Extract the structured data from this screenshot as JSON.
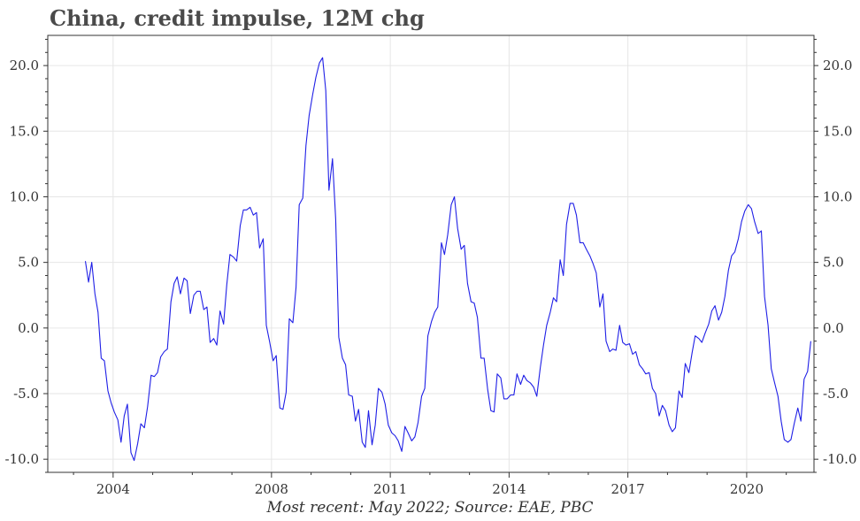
{
  "title": "China, credit impulse, 12M chg",
  "caption": "Most recent: May 2022; Source: EAE, PBC",
  "colors": {
    "line": "#1f1fe6",
    "grid": "#e6e6e6",
    "axis": "#333333"
  },
  "chart_data": {
    "type": "line",
    "title": "China, credit impulse, 12M chg",
    "xlabel": "",
    "ylabel": "",
    "xlim": [
      2002.35,
      2021.7
    ],
    "ylim": [
      -11.0,
      22.3
    ],
    "x_ticks": [
      2004,
      2008,
      2011,
      2014,
      2017,
      2020
    ],
    "x_tick_labels": [
      "2004",
      "2008",
      "2011",
      "2014",
      "2017",
      "2020"
    ],
    "y_ticks": [
      -10,
      -5,
      0,
      5,
      10,
      15,
      20
    ],
    "y_tick_labels": [
      "-10.0",
      "-5.0",
      "0.0",
      "5.0",
      "10.0",
      "15.0",
      "20.0"
    ],
    "grid": true,
    "secondary_y_axis": true,
    "series": [
      {
        "points": [
          [
            2003.3,
            5.1
          ],
          [
            2003.38,
            3.5
          ],
          [
            2003.46,
            5.0
          ],
          [
            2003.54,
            2.6
          ],
          [
            2003.62,
            1.2
          ],
          [
            2003.7,
            -2.3
          ],
          [
            2003.78,
            -2.5
          ],
          [
            2003.87,
            -4.8
          ],
          [
            2003.95,
            -5.7
          ],
          [
            2004.03,
            -6.4
          ],
          [
            2004.12,
            -7.0
          ],
          [
            2004.2,
            -8.7
          ],
          [
            2004.28,
            -6.7
          ],
          [
            2004.36,
            -5.8
          ],
          [
            2004.45,
            -9.5
          ],
          [
            2004.53,
            -10.1
          ],
          [
            2004.62,
            -8.8
          ],
          [
            2004.7,
            -7.3
          ],
          [
            2004.79,
            -7.6
          ],
          [
            2004.87,
            -6.0
          ],
          [
            2004.96,
            -3.6
          ],
          [
            2005.04,
            -3.7
          ],
          [
            2005.12,
            -3.4
          ],
          [
            2005.2,
            -2.2
          ],
          [
            2005.29,
            -1.8
          ],
          [
            2005.37,
            -1.6
          ],
          [
            2005.46,
            2.0
          ],
          [
            2005.54,
            3.4
          ],
          [
            2005.62,
            3.9
          ],
          [
            2005.7,
            2.6
          ],
          [
            2005.79,
            3.8
          ],
          [
            2005.87,
            3.6
          ],
          [
            2005.95,
            1.1
          ],
          [
            2006.04,
            2.5
          ],
          [
            2006.12,
            2.8
          ],
          [
            2006.2,
            2.8
          ],
          [
            2006.29,
            1.4
          ],
          [
            2006.37,
            1.6
          ],
          [
            2006.45,
            -1.1
          ],
          [
            2006.54,
            -0.8
          ],
          [
            2006.62,
            -1.3
          ],
          [
            2006.7,
            1.3
          ],
          [
            2006.79,
            0.3
          ],
          [
            2006.87,
            3.3
          ],
          [
            2006.95,
            5.6
          ],
          [
            2007.04,
            5.4
          ],
          [
            2007.12,
            5.1
          ],
          [
            2007.21,
            7.8
          ],
          [
            2007.29,
            9.0
          ],
          [
            2007.37,
            9.0
          ],
          [
            2007.46,
            9.2
          ],
          [
            2007.54,
            8.6
          ],
          [
            2007.62,
            8.8
          ],
          [
            2007.7,
            6.1
          ],
          [
            2007.79,
            6.8
          ],
          [
            2007.87,
            0.2
          ],
          [
            2007.95,
            -1.0
          ],
          [
            2008.04,
            -2.5
          ],
          [
            2008.12,
            -2.1
          ],
          [
            2008.21,
            -6.1
          ],
          [
            2008.29,
            -6.2
          ],
          [
            2008.37,
            -4.9
          ],
          [
            2008.45,
            0.7
          ],
          [
            2008.54,
            0.4
          ],
          [
            2008.62,
            3.1
          ],
          [
            2008.7,
            9.4
          ],
          [
            2008.79,
            9.9
          ],
          [
            2008.87,
            13.9
          ],
          [
            2008.95,
            16.2
          ],
          [
            2009.04,
            17.8
          ],
          [
            2009.12,
            19.1
          ],
          [
            2009.21,
            20.2
          ],
          [
            2009.29,
            20.6
          ],
          [
            2009.37,
            18.1
          ],
          [
            2009.45,
            10.5
          ],
          [
            2009.54,
            12.9
          ],
          [
            2009.62,
            8.3
          ],
          [
            2009.7,
            -0.7
          ],
          [
            2009.79,
            -2.3
          ],
          [
            2009.87,
            -2.8
          ],
          [
            2009.95,
            -5.1
          ],
          [
            2010.04,
            -5.2
          ],
          [
            2010.12,
            -7.1
          ],
          [
            2010.2,
            -6.2
          ],
          [
            2010.29,
            -8.7
          ],
          [
            2010.37,
            -9.1
          ],
          [
            2010.45,
            -6.3
          ],
          [
            2010.54,
            -8.9
          ],
          [
            2010.62,
            -7.4
          ],
          [
            2010.7,
            -4.6
          ],
          [
            2010.79,
            -4.9
          ],
          [
            2010.87,
            -5.8
          ],
          [
            2010.95,
            -7.4
          ],
          [
            2011.04,
            -8.0
          ],
          [
            2011.12,
            -8.2
          ],
          [
            2011.2,
            -8.6
          ],
          [
            2011.29,
            -9.4
          ],
          [
            2011.37,
            -7.5
          ],
          [
            2011.45,
            -8.0
          ],
          [
            2011.54,
            -8.6
          ],
          [
            2011.62,
            -8.3
          ],
          [
            2011.7,
            -7.2
          ],
          [
            2011.79,
            -5.2
          ],
          [
            2011.87,
            -4.6
          ],
          [
            2011.95,
            -0.6
          ],
          [
            2012.04,
            0.5
          ],
          [
            2012.12,
            1.2
          ],
          [
            2012.2,
            1.6
          ],
          [
            2012.29,
            6.5
          ],
          [
            2012.37,
            5.6
          ],
          [
            2012.45,
            7.1
          ],
          [
            2012.54,
            9.4
          ],
          [
            2012.62,
            10.0
          ],
          [
            2012.7,
            7.6
          ],
          [
            2012.79,
            6.0
          ],
          [
            2012.87,
            6.3
          ],
          [
            2012.95,
            3.4
          ],
          [
            2013.04,
            2.0
          ],
          [
            2013.12,
            1.9
          ],
          [
            2013.2,
            0.8
          ],
          [
            2013.29,
            -2.3
          ],
          [
            2013.37,
            -2.3
          ],
          [
            2013.46,
            -4.7
          ],
          [
            2013.54,
            -6.3
          ],
          [
            2013.62,
            -6.4
          ],
          [
            2013.7,
            -3.5
          ],
          [
            2013.79,
            -3.8
          ],
          [
            2013.87,
            -5.4
          ],
          [
            2013.95,
            -5.4
          ],
          [
            2014.04,
            -5.1
          ],
          [
            2014.12,
            -5.1
          ],
          [
            2014.2,
            -3.5
          ],
          [
            2014.29,
            -4.3
          ],
          [
            2014.37,
            -3.6
          ],
          [
            2014.45,
            -4.0
          ],
          [
            2014.54,
            -4.2
          ],
          [
            2014.62,
            -4.5
          ],
          [
            2014.7,
            -5.2
          ],
          [
            2014.79,
            -3.0
          ],
          [
            2014.87,
            -1.3
          ],
          [
            2014.95,
            0.2
          ],
          [
            2015.04,
            1.2
          ],
          [
            2015.12,
            2.3
          ],
          [
            2015.2,
            2.0
          ],
          [
            2015.29,
            5.2
          ],
          [
            2015.37,
            4.0
          ],
          [
            2015.45,
            7.9
          ],
          [
            2015.54,
            9.5
          ],
          [
            2015.62,
            9.5
          ],
          [
            2015.7,
            8.6
          ],
          [
            2015.79,
            6.5
          ],
          [
            2015.87,
            6.5
          ],
          [
            2015.95,
            6.0
          ],
          [
            2016.04,
            5.5
          ],
          [
            2016.12,
            4.9
          ],
          [
            2016.2,
            4.2
          ],
          [
            2016.29,
            1.6
          ],
          [
            2016.37,
            2.6
          ],
          [
            2016.45,
            -1.0
          ],
          [
            2016.54,
            -1.8
          ],
          [
            2016.62,
            -1.6
          ],
          [
            2016.7,
            -1.7
          ],
          [
            2016.79,
            0.2
          ],
          [
            2016.87,
            -1.1
          ],
          [
            2016.95,
            -1.3
          ],
          [
            2017.04,
            -1.2
          ],
          [
            2017.12,
            -2.0
          ],
          [
            2017.2,
            -1.8
          ],
          [
            2017.29,
            -2.8
          ],
          [
            2017.37,
            -3.1
          ],
          [
            2017.45,
            -3.5
          ],
          [
            2017.54,
            -3.4
          ],
          [
            2017.62,
            -4.6
          ],
          [
            2017.7,
            -5.0
          ],
          [
            2017.79,
            -6.7
          ],
          [
            2017.87,
            -5.9
          ],
          [
            2017.95,
            -6.3
          ],
          [
            2018.04,
            -7.4
          ],
          [
            2018.12,
            -7.9
          ],
          [
            2018.2,
            -7.6
          ],
          [
            2018.29,
            -4.8
          ],
          [
            2018.37,
            -5.3
          ],
          [
            2018.45,
            -2.7
          ],
          [
            2018.54,
            -3.4
          ],
          [
            2018.62,
            -1.9
          ],
          [
            2018.7,
            -0.6
          ],
          [
            2018.79,
            -0.8
          ],
          [
            2018.87,
            -1.1
          ],
          [
            2018.95,
            -0.4
          ],
          [
            2019.04,
            0.3
          ],
          [
            2019.12,
            1.3
          ],
          [
            2019.2,
            1.7
          ],
          [
            2019.29,
            0.6
          ],
          [
            2019.37,
            1.2
          ],
          [
            2019.45,
            2.4
          ],
          [
            2019.54,
            4.4
          ],
          [
            2019.62,
            5.5
          ],
          [
            2019.7,
            5.8
          ],
          [
            2019.79,
            6.8
          ],
          [
            2019.87,
            8.1
          ],
          [
            2019.95,
            8.9
          ],
          [
            2020.04,
            9.4
          ],
          [
            2020.12,
            9.1
          ],
          [
            2020.2,
            8.1
          ],
          [
            2020.29,
            7.2
          ],
          [
            2020.37,
            7.4
          ],
          [
            2020.45,
            2.4
          ],
          [
            2020.54,
            0.2
          ],
          [
            2020.62,
            -3.1
          ],
          [
            2020.7,
            -4.1
          ],
          [
            2020.79,
            -5.2
          ],
          [
            2020.87,
            -7.1
          ],
          [
            2020.95,
            -8.5
          ],
          [
            2021.04,
            -8.7
          ],
          [
            2021.12,
            -8.5
          ],
          [
            2021.2,
            -7.3
          ],
          [
            2021.29,
            -6.1
          ],
          [
            2021.37,
            -7.1
          ],
          [
            2021.45,
            -3.9
          ],
          [
            2021.54,
            -3.3
          ],
          [
            2021.62,
            -1.0
          ]
        ]
      }
    ]
  }
}
